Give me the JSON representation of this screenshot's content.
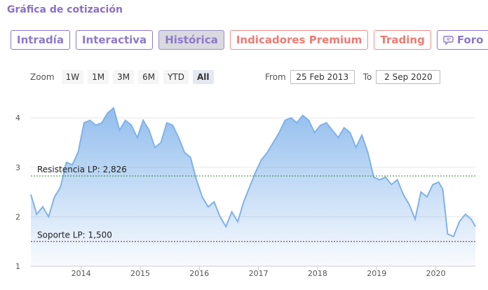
{
  "header": {
    "title": "Gráfica de cotización"
  },
  "tabs": [
    {
      "label": "Intradía",
      "active": false,
      "premium": false
    },
    {
      "label": "Interactiva",
      "active": false,
      "premium": false
    },
    {
      "label": "Histórica",
      "active": true,
      "premium": false
    },
    {
      "label": "Indicadores Premium",
      "active": false,
      "premium": true
    },
    {
      "label": "Trading",
      "active": false,
      "premium": true
    },
    {
      "label": "Foro",
      "active": false,
      "premium": false,
      "icon": "speech-bubble-icon"
    }
  ],
  "zoom": {
    "label": "Zoom",
    "options": [
      "1W",
      "1M",
      "3M",
      "6M",
      "YTD",
      "All"
    ],
    "selected": "All"
  },
  "range": {
    "from_label": "From",
    "from_value": "25 Feb 2013",
    "to_label": "To",
    "to_value": "2 Sep 2020"
  },
  "colors": {
    "accent": "#8c79c9",
    "premium": "#ef7a73",
    "series": "#7fb2ea",
    "resistance": "#2e8b2e",
    "support": "#8b1a1a"
  },
  "chart_data": {
    "type": "area",
    "title": "",
    "xlabel": "",
    "ylabel": "",
    "ylim": [
      1,
      4.4
    ],
    "xlim": [
      2013.15,
      2020.67
    ],
    "xticks": [
      "2014",
      "2015",
      "2016",
      "2017",
      "2018",
      "2019",
      "2020"
    ],
    "yticks": [
      "1",
      "2",
      "3",
      "4"
    ],
    "grid": true,
    "series": [
      {
        "x": [
          2013.15,
          2013.25,
          2013.35,
          2013.45,
          2013.55,
          2013.65,
          2013.75,
          2013.85,
          2013.95,
          2014.05,
          2014.15,
          2014.25,
          2014.35,
          2014.45,
          2014.55,
          2014.65,
          2014.75,
          2014.85,
          2014.95,
          2015.05,
          2015.15,
          2015.25,
          2015.35,
          2015.45,
          2015.55,
          2015.65,
          2015.75,
          2015.85,
          2015.95,
          2016.05,
          2016.15,
          2016.25,
          2016.35,
          2016.45,
          2016.55,
          2016.65,
          2016.75,
          2016.85,
          2016.95,
          2017.05,
          2017.15,
          2017.25,
          2017.35,
          2017.45,
          2017.55,
          2017.65,
          2017.75,
          2017.85,
          2017.95,
          2018.05,
          2018.15,
          2018.25,
          2018.35,
          2018.45,
          2018.55,
          2018.65,
          2018.75,
          2018.85,
          2018.95,
          2019.05,
          2019.15,
          2019.25,
          2019.35,
          2019.45,
          2019.55,
          2019.65,
          2019.75,
          2019.85,
          2019.95,
          2020.05,
          2020.12,
          2020.2,
          2020.3,
          2020.4,
          2020.5,
          2020.6,
          2020.67
        ],
        "y": [
          2.45,
          2.05,
          2.2,
          2.0,
          2.4,
          2.6,
          3.1,
          3.05,
          3.3,
          3.9,
          3.95,
          3.85,
          3.9,
          4.1,
          4.2,
          3.75,
          3.95,
          3.85,
          3.6,
          3.95,
          3.75,
          3.4,
          3.5,
          3.9,
          3.85,
          3.6,
          3.3,
          3.2,
          2.75,
          2.4,
          2.2,
          2.3,
          2.0,
          1.8,
          2.1,
          1.9,
          2.3,
          2.6,
          2.9,
          3.15,
          3.3,
          3.5,
          3.7,
          3.95,
          4.0,
          3.9,
          4.05,
          3.95,
          3.7,
          3.85,
          3.9,
          3.75,
          3.6,
          3.8,
          3.7,
          3.4,
          3.65,
          3.3,
          2.8,
          2.75,
          2.8,
          2.65,
          2.75,
          2.45,
          2.25,
          1.95,
          2.5,
          2.4,
          2.65,
          2.7,
          2.55,
          1.65,
          1.6,
          1.9,
          2.05,
          1.95,
          1.8
        ]
      }
    ],
    "resistance": {
      "label": "Resistencia LP: 2,826",
      "value": 2.826
    },
    "support": {
      "label": "Soporte LP: 1,500",
      "value": 1.5
    }
  }
}
